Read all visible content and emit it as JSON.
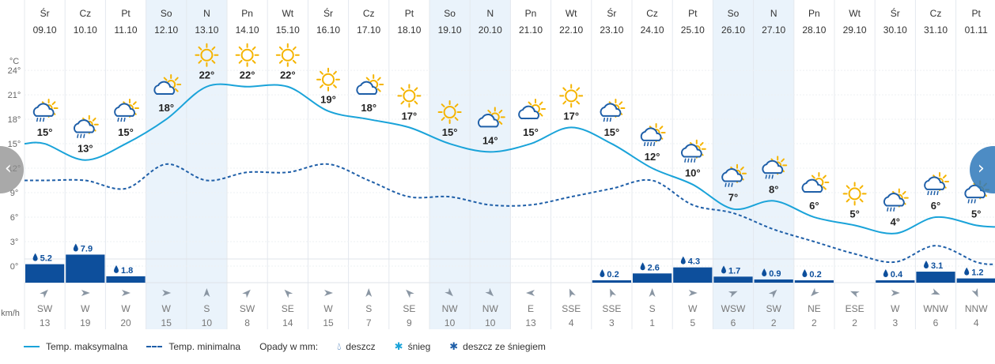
{
  "chart_data": {
    "type": "line",
    "days": [
      {
        "dow": "Śr",
        "date": "09.10",
        "max": 15,
        "min": 10.5,
        "rain": 5.2,
        "dir": "SW",
        "wind": 13,
        "icon": "rain-sun-icon"
      },
      {
        "dow": "Cz",
        "date": "10.10",
        "max": 13,
        "min": 10.5,
        "rain": 7.9,
        "dir": "W",
        "wind": 19,
        "icon": "rain-sun-icon"
      },
      {
        "dow": "Pt",
        "date": "11.10",
        "max": 15,
        "min": 9.5,
        "rain": 1.8,
        "dir": "W",
        "wind": 20,
        "icon": "rain-sun-icon"
      },
      {
        "dow": "So",
        "date": "12.10",
        "max": 18,
        "min": 12.5,
        "rain": null,
        "dir": "W",
        "wind": 15,
        "icon": "cloud-sun-icon",
        "weekend": true
      },
      {
        "dow": "N",
        "date": "13.10",
        "max": 22,
        "min": 10.5,
        "rain": null,
        "dir": "S",
        "wind": 10,
        "icon": "sun-icon",
        "weekend": true
      },
      {
        "dow": "Pn",
        "date": "14.10",
        "max": 22,
        "min": 11.5,
        "rain": null,
        "dir": "SW",
        "wind": 8,
        "icon": "sun-icon"
      },
      {
        "dow": "Wt",
        "date": "15.10",
        "max": 22,
        "min": 11.5,
        "rain": null,
        "dir": "SE",
        "wind": 14,
        "icon": "sun-icon"
      },
      {
        "dow": "Śr",
        "date": "16.10",
        "max": 19,
        "min": 12.5,
        "rain": null,
        "dir": "W",
        "wind": 15,
        "icon": "sun-icon"
      },
      {
        "dow": "Cz",
        "date": "17.10",
        "max": 18,
        "min": 10.5,
        "rain": null,
        "dir": "S",
        "wind": 7,
        "icon": "cloud-sun-icon"
      },
      {
        "dow": "Pt",
        "date": "18.10",
        "max": 17,
        "min": 8.5,
        "rain": null,
        "dir": "SE",
        "wind": 9,
        "icon": "sun-icon"
      },
      {
        "dow": "So",
        "date": "19.10",
        "max": 15,
        "min": 8.5,
        "rain": null,
        "dir": "NW",
        "wind": 10,
        "icon": "sun-icon",
        "weekend": true
      },
      {
        "dow": "N",
        "date": "20.10",
        "max": 14,
        "min": 7.5,
        "rain": null,
        "dir": "NW",
        "wind": 10,
        "icon": "cloud-sun-icon",
        "weekend": true
      },
      {
        "dow": "Pn",
        "date": "21.10",
        "max": 15,
        "min": 7.5,
        "rain": null,
        "dir": "E",
        "wind": 13,
        "icon": "cloud-sun-icon"
      },
      {
        "dow": "Wt",
        "date": "22.10",
        "max": 17,
        "min": 8.5,
        "rain": null,
        "dir": "SSE",
        "wind": 4,
        "icon": "sun-icon"
      },
      {
        "dow": "Śr",
        "date": "23.10",
        "max": 15,
        "min": 9.5,
        "rain": 0.2,
        "dir": "SSE",
        "wind": 3,
        "icon": "rain-sun-icon"
      },
      {
        "dow": "Cz",
        "date": "24.10",
        "max": 12,
        "min": 10.5,
        "rain": 2.6,
        "dir": "S",
        "wind": 1,
        "icon": "heavy-rain-sun-icon"
      },
      {
        "dow": "Pt",
        "date": "25.10",
        "max": 10,
        "min": 7.5,
        "rain": 4.3,
        "dir": "W",
        "wind": 5,
        "icon": "heavy-rain-sun-icon"
      },
      {
        "dow": "So",
        "date": "26.10",
        "max": 7,
        "min": 6.5,
        "rain": 1.7,
        "dir": "WSW",
        "wind": 6,
        "icon": "rain-sun-icon",
        "weekend": true
      },
      {
        "dow": "N",
        "date": "27.10",
        "max": 8,
        "min": 4.5,
        "rain": 0.9,
        "dir": "SW",
        "wind": 2,
        "icon": "rain-sun-icon",
        "weekend": true
      },
      {
        "dow": "Pn",
        "date": "28.10",
        "max": 6,
        "min": 3,
        "rain": 0.2,
        "dir": "NE",
        "wind": 2,
        "icon": "cloud-sun-icon"
      },
      {
        "dow": "Wt",
        "date": "29.10",
        "max": 5,
        "min": 1.5,
        "rain": null,
        "dir": "ESE",
        "wind": 2,
        "icon": "sun-icon"
      },
      {
        "dow": "Śr",
        "date": "30.10",
        "max": 4,
        "min": 0.5,
        "rain": 0.4,
        "dir": "W",
        "wind": 3,
        "icon": "rain-sun-icon"
      },
      {
        "dow": "Cz",
        "date": "31.10",
        "max": 6,
        "min": 2.5,
        "rain": 3.1,
        "dir": "WNW",
        "wind": 6,
        "icon": "heavy-rain-sun-icon"
      },
      {
        "dow": "Pt",
        "date": "01.11",
        "max": 5,
        "min": 0.5,
        "rain": 1.2,
        "dir": "NNW",
        "wind": 4,
        "icon": "rain-sun-icon"
      }
    ],
    "yaxis": {
      "unit": "°C",
      "ticks": [
        24,
        21,
        18,
        15,
        12,
        9,
        6,
        3,
        0
      ],
      "ylim": [
        0,
        27
      ]
    },
    "wind_unit": "km/h",
    "colors": {
      "max": "#1aa3d9",
      "min": "#1f5fa8",
      "rain": "#0d4f9c",
      "sun": "#f5b400",
      "weekend": "#eaf3fb",
      "grid": "#e4e8ee"
    }
  },
  "legend": {
    "max_label": "Temp. maksymalna",
    "min_label": "Temp. minimalna",
    "precip_label": "Opady w mm:",
    "rain_label": "deszcz",
    "snow_label": "śnieg",
    "mixed_label": "deszcz ze śniegiem"
  },
  "nav": {
    "prev_icon": "chevron-left-icon",
    "next_icon": "chevron-right-icon",
    "prev_glyph": "‹",
    "next_glyph": "›"
  }
}
